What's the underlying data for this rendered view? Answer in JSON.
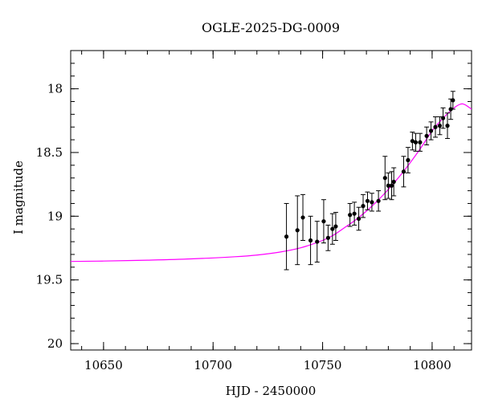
{
  "chart_data": {
    "type": "scatter",
    "title": "OGLE-2025-DG-0009",
    "xlabel": "HJD - 2450000",
    "ylabel": "I magnitude",
    "xlim": [
      10635,
      10818
    ],
    "ylim": [
      20.05,
      17.7
    ],
    "y_inverted": true,
    "x_ticks": [
      10650,
      10700,
      10750,
      10800
    ],
    "y_ticks": [
      18,
      18.5,
      19,
      19.5,
      20
    ],
    "x_tick_labels": [
      "10650",
      "10700",
      "10750",
      "10800"
    ],
    "y_tick_labels": [
      "18",
      "18.5",
      "19",
      "19.5",
      "20"
    ],
    "x_minor_step": 10,
    "y_minor_step": 0.1,
    "grid": false,
    "colors": {
      "points": "#000000",
      "model": "#ff00ff",
      "axes": "#000000"
    },
    "series": [
      {
        "kind": "points_with_errorbars",
        "points": [
          {
            "x": 10733.5,
            "y": 19.16,
            "err": 0.26
          },
          {
            "x": 10738.5,
            "y": 19.11,
            "err": 0.27
          },
          {
            "x": 10741.0,
            "y": 19.01,
            "err": 0.18
          },
          {
            "x": 10744.5,
            "y": 19.19,
            "err": 0.19
          },
          {
            "x": 10747.5,
            "y": 19.2,
            "err": 0.16
          },
          {
            "x": 10750.5,
            "y": 19.04,
            "err": 0.17
          },
          {
            "x": 10752.5,
            "y": 19.17,
            "err": 0.1
          },
          {
            "x": 10754.5,
            "y": 19.1,
            "err": 0.12
          },
          {
            "x": 10756.0,
            "y": 19.08,
            "err": 0.11
          },
          {
            "x": 10762.5,
            "y": 18.99,
            "err": 0.09
          },
          {
            "x": 10764.5,
            "y": 18.98,
            "err": 0.09
          },
          {
            "x": 10766.5,
            "y": 19.02,
            "err": 0.09
          },
          {
            "x": 10768.5,
            "y": 18.92,
            "err": 0.09
          },
          {
            "x": 10770.5,
            "y": 18.88,
            "err": 0.07
          },
          {
            "x": 10772.5,
            "y": 18.89,
            "err": 0.07
          },
          {
            "x": 10775.5,
            "y": 18.88,
            "err": 0.08
          },
          {
            "x": 10778.5,
            "y": 18.7,
            "err": 0.17
          },
          {
            "x": 10780.0,
            "y": 18.76,
            "err": 0.1
          },
          {
            "x": 10781.5,
            "y": 18.76,
            "err": 0.11
          },
          {
            "x": 10782.5,
            "y": 18.73,
            "err": 0.11
          },
          {
            "x": 10787.0,
            "y": 18.65,
            "err": 0.12
          },
          {
            "x": 10789.0,
            "y": 18.56,
            "err": 0.1
          },
          {
            "x": 10791.0,
            "y": 18.41,
            "err": 0.07
          },
          {
            "x": 10792.5,
            "y": 18.42,
            "err": 0.07
          },
          {
            "x": 10794.5,
            "y": 18.42,
            "err": 0.07
          },
          {
            "x": 10797.5,
            "y": 18.37,
            "err": 0.07
          },
          {
            "x": 10799.5,
            "y": 18.33,
            "err": 0.07
          },
          {
            "x": 10801.5,
            "y": 18.3,
            "err": 0.08
          },
          {
            "x": 10803.5,
            "y": 18.29,
            "err": 0.07
          },
          {
            "x": 10805.0,
            "y": 18.23,
            "err": 0.08
          },
          {
            "x": 10807.0,
            "y": 18.29,
            "err": 0.1
          },
          {
            "x": 10808.5,
            "y": 18.16,
            "err": 0.08
          },
          {
            "x": 10809.5,
            "y": 18.09,
            "err": 0.07
          }
        ]
      },
      {
        "kind": "model_curve",
        "x": [
          10635,
          10650,
          10670,
          10690,
          10710,
          10720,
          10730,
          10740,
          10750,
          10755,
          10760,
          10765,
          10770,
          10775,
          10780,
          10785,
          10790,
          10795,
          10800,
          10805,
          10810,
          10813,
          10815,
          10818
        ],
        "y": [
          19.355,
          19.352,
          19.345,
          19.335,
          19.318,
          19.305,
          19.283,
          19.248,
          19.19,
          19.148,
          19.09,
          19.03,
          18.96,
          18.88,
          18.79,
          18.69,
          18.58,
          18.46,
          18.33,
          18.23,
          18.15,
          18.12,
          18.125,
          18.16
        ]
      }
    ]
  }
}
